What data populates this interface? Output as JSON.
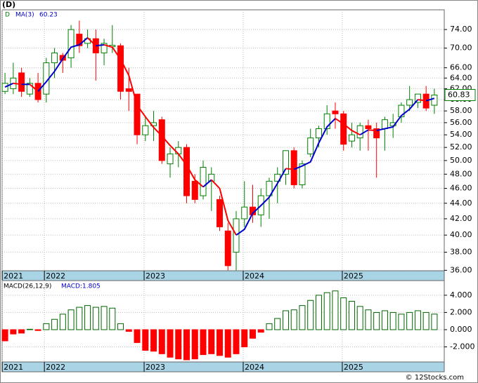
{
  "watermark": "© 12Stocks.com",
  "chart_data": [
    {
      "type": "candlestick",
      "title": "(D)",
      "symbol": "D",
      "open": [
        61.5,
        62,
        65,
        61,
        63,
        61,
        67,
        68.5,
        68,
        73,
        71,
        72,
        69,
        70.3,
        70.5,
        62,
        61,
        54,
        55.5,
        56.5,
        49.5,
        51,
        52,
        47,
        45,
        47,
        44.5,
        40.5,
        38,
        42,
        43.5,
        42.5,
        45,
        47,
        48,
        51.5,
        46.5,
        51,
        53.5,
        55,
        58,
        57.5,
        53,
        53.5,
        55.5,
        55,
        55,
        55.5,
        57,
        59,
        59.5,
        61,
        59
      ],
      "high": [
        65,
        67,
        66,
        64,
        65,
        68,
        70,
        69,
        75,
        76,
        74,
        74,
        72,
        75,
        71,
        66,
        61,
        57,
        58,
        57,
        52,
        53,
        52.5,
        48,
        50,
        49,
        45,
        41.5,
        43,
        47,
        46.5,
        46,
        47.5,
        49,
        51.5,
        52,
        50,
        55,
        55.5,
        59,
        59.5,
        58,
        56,
        56,
        56.5,
        56,
        57,
        57.5,
        59.5,
        62.5,
        61,
        62.5,
        62
      ],
      "low": [
        61,
        61,
        60.5,
        60.5,
        59.5,
        59.5,
        64,
        65,
        66,
        69,
        70,
        63.5,
        66.5,
        69,
        60,
        58,
        52.5,
        53,
        53,
        49.5,
        47.5,
        49,
        44,
        44,
        44.5,
        43,
        40.5,
        36,
        36,
        41,
        41.5,
        41,
        42,
        44,
        46.5,
        46,
        46,
        50.5,
        52,
        54,
        55,
        51.5,
        52,
        51.5,
        51.5,
        47.5,
        51.5,
        53.5,
        56,
        58,
        58.5,
        58,
        57.5
      ],
      "close": [
        63,
        64,
        61.5,
        63,
        60,
        67,
        69,
        67.5,
        74,
        70.5,
        72,
        69,
        71,
        70.6,
        61.5,
        61.5,
        54,
        55.5,
        56,
        50,
        51,
        52,
        45,
        44.5,
        49,
        48,
        41,
        36.5,
        42,
        43.5,
        42.5,
        45,
        47,
        48,
        51.5,
        46.5,
        49.5,
        53.5,
        55,
        57.5,
        57.5,
        52.5,
        54,
        55.5,
        55,
        53.5,
        56.5,
        56,
        59,
        60,
        61,
        58.5,
        60.83
      ],
      "up_color": "#008000",
      "down_color": "#ff0000",
      "last_label": "60.83",
      "ma": {
        "name": "MA(3)",
        "value_label": "60.23",
        "up_color": "#0000cc",
        "down_color": "#ff0000",
        "values": [
          62.3,
          63,
          62.8,
          62.8,
          61.5,
          63.3,
          65.3,
          67.8,
          70.2,
          70.7,
          72.2,
          70.5,
          70.7,
          70.2,
          67.7,
          64.5,
          59,
          57,
          55.2,
          53.8,
          52.3,
          51,
          49.3,
          47.2,
          46.2,
          47.2,
          46,
          41.8,
          40,
          40.7,
          42.7,
          43.7,
          44.8,
          46.7,
          48.8,
          48.7,
          49.2,
          49.8,
          52.7,
          55.3,
          56.7,
          55.8,
          54.7,
          54,
          54.8,
          54.7,
          55,
          55.3,
          57.2,
          58.3,
          60,
          59.8,
          60.23
        ]
      },
      "ylim": [
        35.95,
        78.5
      ],
      "log_scale": true,
      "yticks": [
        {
          "value": 74,
          "label": "74.00"
        },
        {
          "value": 70,
          "label": "70.00"
        },
        {
          "value": 66,
          "label": "66.00"
        },
        {
          "value": 64,
          "label": "64.00"
        },
        {
          "value": 62,
          "label": "62.00"
        },
        {
          "value": 60,
          "label": "60.00"
        },
        {
          "value": 58,
          "label": "58.00"
        },
        {
          "value": 56,
          "label": "56.00"
        },
        {
          "value": 54,
          "label": "54.00"
        },
        {
          "value": 52,
          "label": "52.00"
        },
        {
          "value": 50,
          "label": "50.00"
        },
        {
          "value": 48,
          "label": "48.00"
        },
        {
          "value": 46,
          "label": "46.00"
        },
        {
          "value": 44,
          "label": "44.00"
        },
        {
          "value": 42,
          "label": "42.00"
        },
        {
          "value": 40,
          "label": "40.00"
        },
        {
          "value": 38,
          "label": "38.00"
        },
        {
          "value": 36,
          "label": "36.00"
        }
      ],
      "xlim": [
        -0.35,
        53.2
      ],
      "xticks": [
        {
          "value": -0.34,
          "label": "2021"
        },
        {
          "value": 4.77,
          "label": "2022"
        },
        {
          "value": 16.85,
          "label": "2023"
        },
        {
          "value": 28.85,
          "label": "2024"
        },
        {
          "value": 40.85,
          "label": "2025"
        }
      ],
      "grid": true
    },
    {
      "type": "bar",
      "title": "MACD(26,12,9)",
      "latest_label": "MACD:1.805",
      "values": [
        -1.3,
        -0.5,
        -0.4,
        0.05,
        -0.1,
        0.7,
        1.2,
        1.8,
        2.3,
        2.6,
        2.8,
        2.6,
        2.7,
        2.5,
        0.7,
        -0.2,
        -1.5,
        -2.4,
        -2.5,
        -2.8,
        -3.2,
        -3.4,
        -3.5,
        -3.4,
        -2.9,
        -2.8,
        -3.0,
        -3.2,
        -2.8,
        -2.0,
        -1.0,
        -0.3,
        0.7,
        1.3,
        2.2,
        2.3,
        2.8,
        3.4,
        4.0,
        4.3,
        4.5,
        3.7,
        3.3,
        2.7,
        2.3,
        2.0,
        2.2,
        2.0,
        1.8,
        2.0,
        2.2,
        2.0,
        1.805
      ],
      "up_color": "#006600",
      "down_color": "#ff0000",
      "ylim": [
        -3.75,
        5.7
      ],
      "yticks": [
        {
          "value": 4,
          "label": "4.000"
        },
        {
          "value": 2,
          "label": "2.000"
        },
        {
          "value": 0,
          "label": "0.000"
        },
        {
          "value": -2,
          "label": "-2.000"
        }
      ],
      "xlim": [
        -0.35,
        53.2
      ],
      "xticks": [
        {
          "value": -0.34,
          "label": "2021"
        },
        {
          "value": 4.77,
          "label": "2022"
        },
        {
          "value": 16.85,
          "label": "2023"
        },
        {
          "value": 28.85,
          "label": "2024"
        },
        {
          "value": 40.85,
          "label": "2025"
        }
      ],
      "grid": true
    }
  ]
}
